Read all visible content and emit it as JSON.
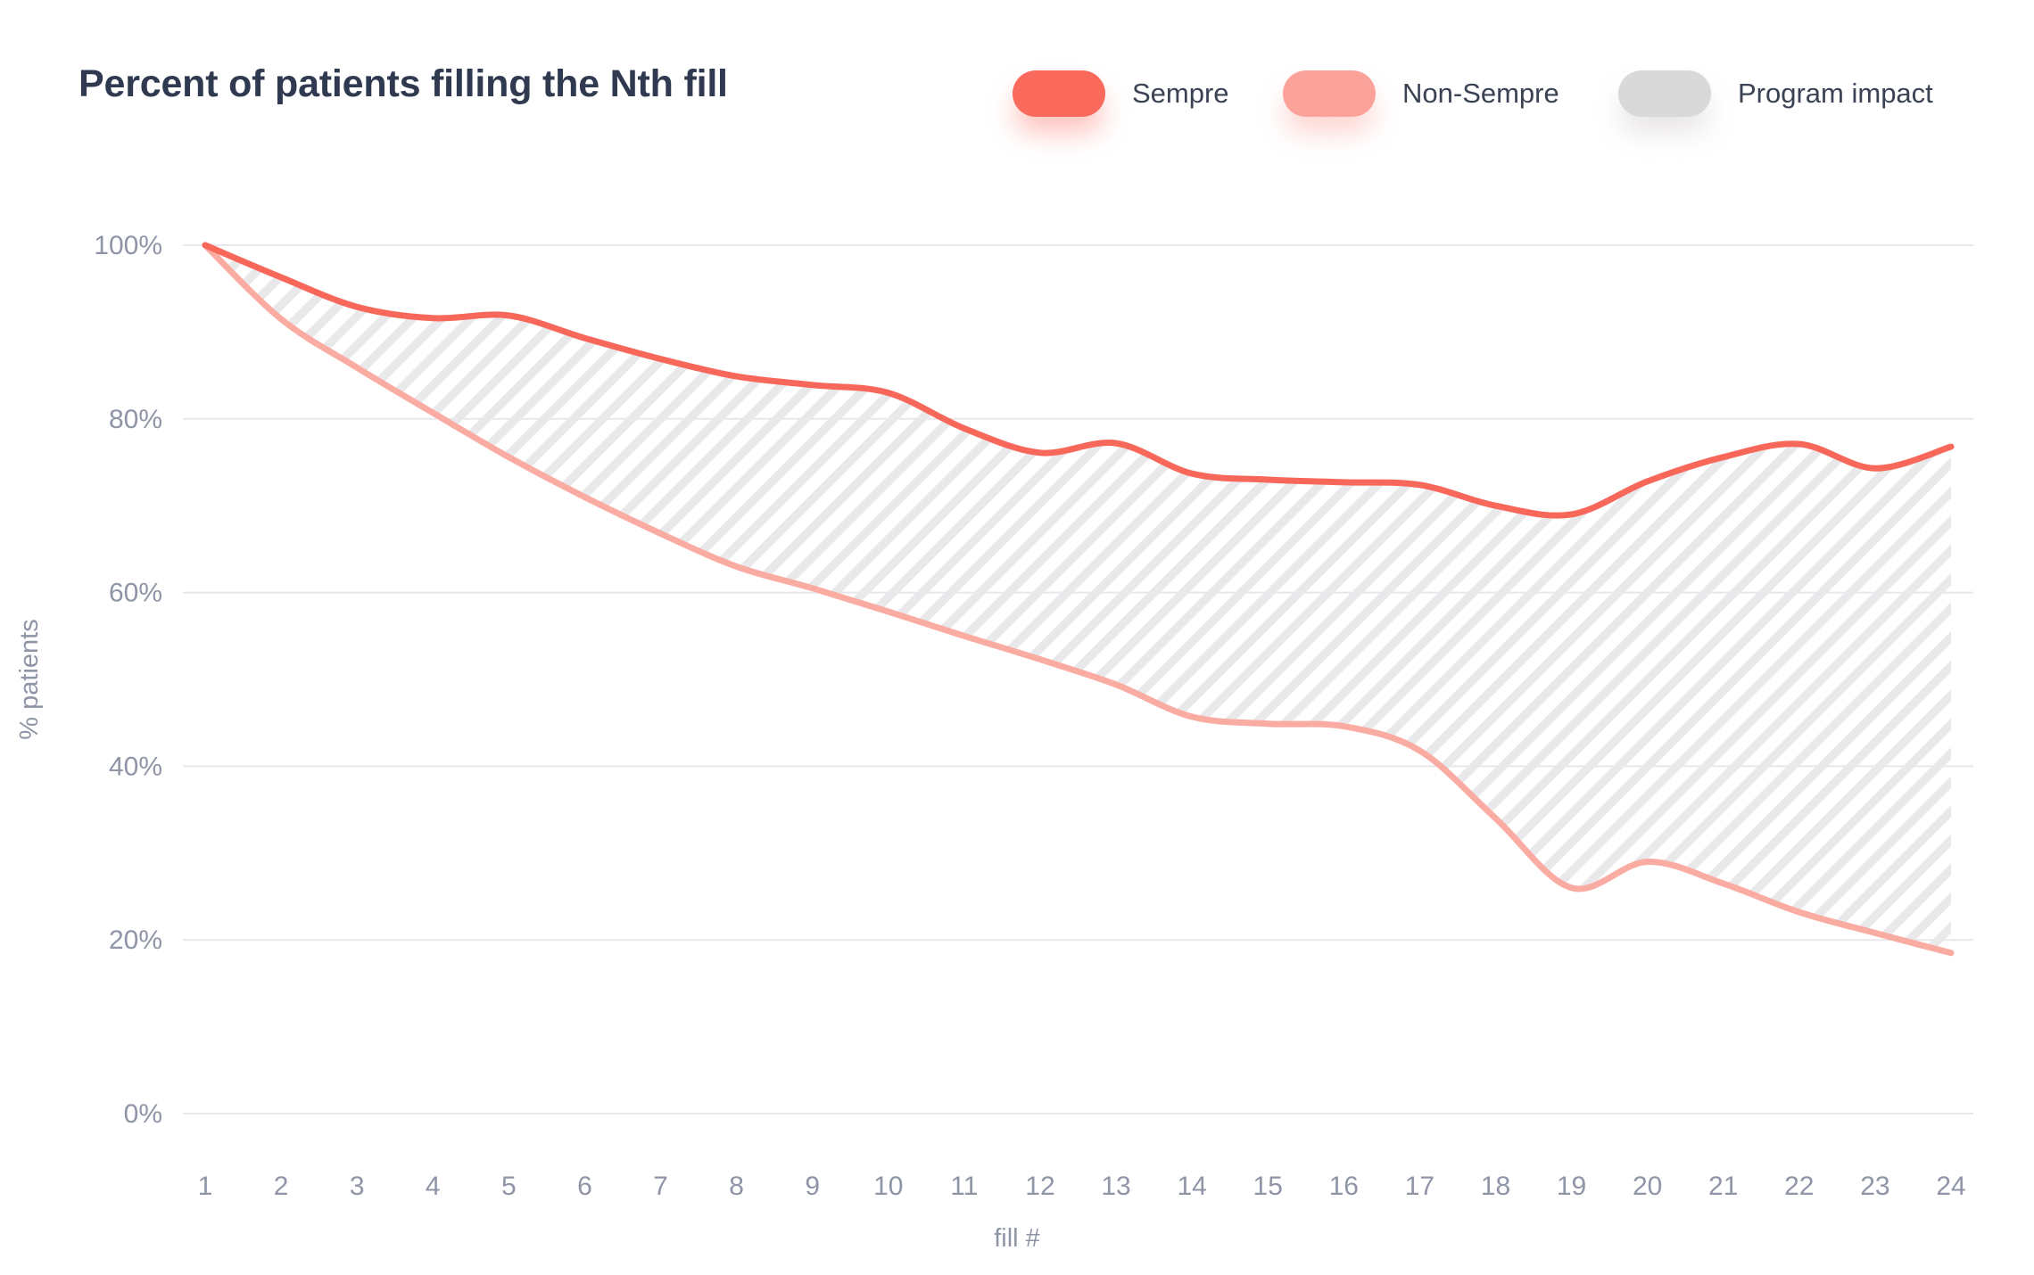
{
  "title": "Percent of patients filling the Nth fill",
  "legend": {
    "items": [
      {
        "label": "Sempre",
        "color": "#F9695C"
      },
      {
        "label": "Non-Sempre",
        "color": "#FBA29A"
      },
      {
        "label": "Program impact",
        "color": "#D9D9DA"
      }
    ]
  },
  "chart_data": {
    "type": "area",
    "title": "Percent of patients filling the Nth fill",
    "xlabel": "fill #",
    "ylabel": "% patients",
    "x": [
      1,
      2,
      3,
      4,
      5,
      6,
      7,
      8,
      9,
      10,
      11,
      12,
      13,
      14,
      15,
      16,
      17,
      18,
      19,
      20,
      21,
      22,
      23,
      24
    ],
    "xlim": [
      1,
      24
    ],
    "ylim": [
      0,
      100
    ],
    "grid": "horizontal",
    "legend_position": "top-right",
    "yticks": [
      {
        "value": 100,
        "label": "100%"
      },
      {
        "value": 80,
        "label": "80%"
      },
      {
        "value": 60,
        "label": "60%"
      },
      {
        "value": 40,
        "label": "40%"
      },
      {
        "value": 20,
        "label": "20%"
      },
      {
        "value": 0,
        "label": "0%"
      }
    ],
    "series": [
      {
        "name": "Sempre",
        "color": "#F8685A",
        "line_width": 7,
        "values": [
          100,
          96.3,
          92.9,
          91.6,
          91.9,
          89.3,
          86.9,
          84.9,
          83.9,
          83.0,
          78.9,
          76.1,
          77.2,
          73.7,
          73.0,
          72.7,
          72.4,
          70.0,
          69.0,
          72.8,
          75.6,
          77.1,
          74.3,
          76.8
        ]
      },
      {
        "name": "Non-Sempre",
        "color": "#FAABA2",
        "line_width": 7,
        "values": [
          100,
          91.5,
          85.9,
          80.7,
          75.6,
          71.0,
          66.8,
          63.0,
          60.5,
          57.8,
          55.0,
          52.3,
          49.4,
          45.7,
          44.9,
          44.6,
          41.8,
          34.0,
          26.0,
          29.0,
          26.5,
          23.2,
          20.8,
          18.5
        ]
      }
    ],
    "band": {
      "name": "Program impact",
      "between": [
        "Sempre",
        "Non-Sempre"
      ],
      "pattern": "diagonal-hatch",
      "color": "#E9E9EB"
    }
  }
}
